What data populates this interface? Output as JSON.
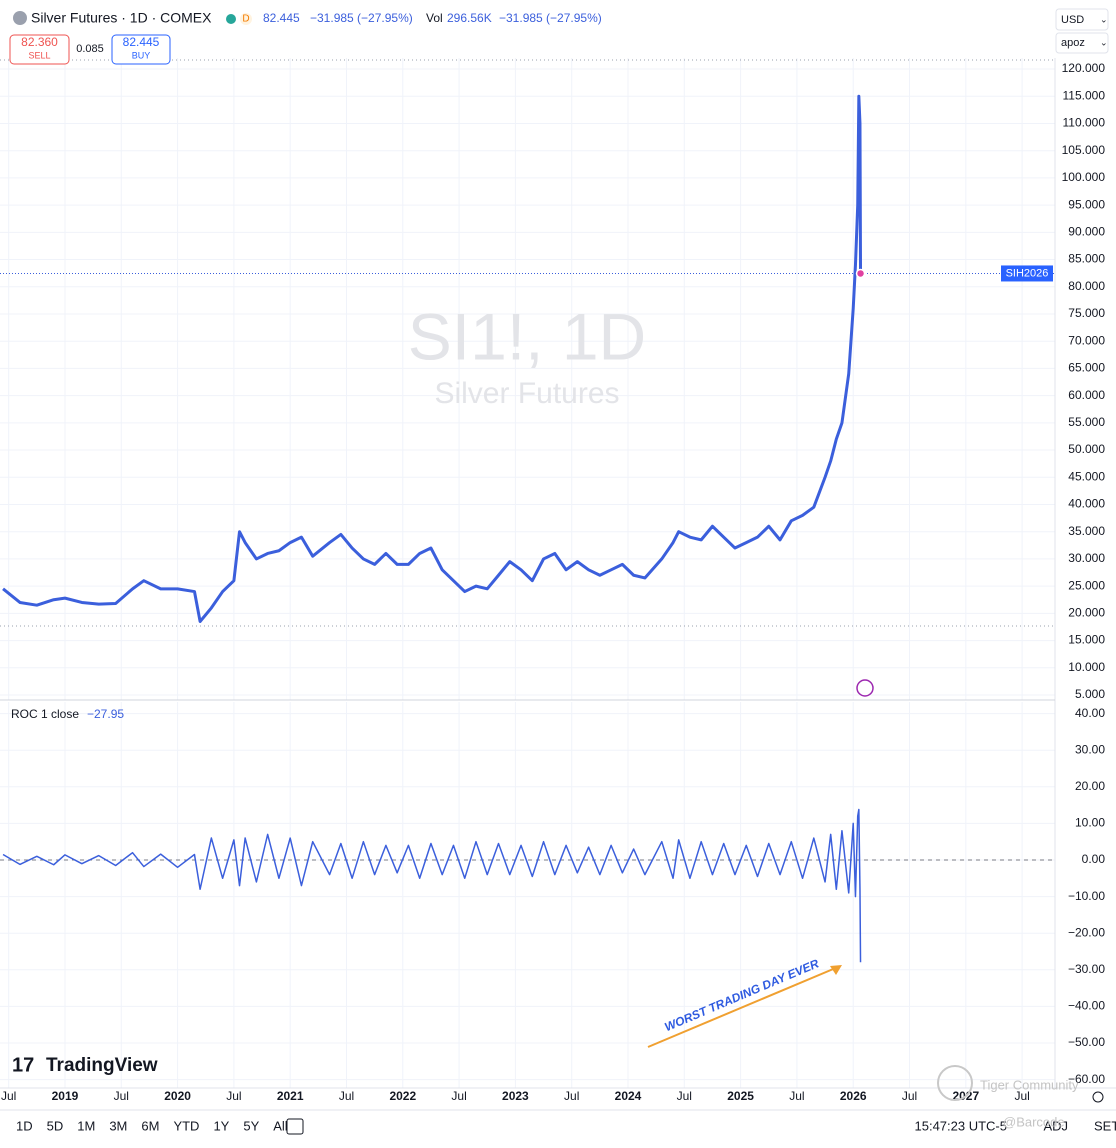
{
  "header": {
    "last": "82.445",
    "change": "−31.985 (−27.95%)",
    "vol_label": "Vol",
    "vol": "296.56K",
    "vol_change": "−31.985 (−27.95%)",
    "interval_badge": "D"
  },
  "trade_panel": {
    "sell_price": "82.360",
    "sell": "SELL",
    "spread": "0.085",
    "buy_price": "82.445",
    "buy": "BUY"
  },
  "currency": "USD",
  "scale_menu": "apoz",
  "toolbar": {
    "ranges": [
      "1D",
      "5D",
      "1M",
      "3M",
      "6M",
      "YTD",
      "1Y",
      "5Y",
      "All"
    ],
    "time": "15:47:23 UTC-5",
    "adj": "ADJ",
    "set": "SET"
  },
  "branding": "TradingView",
  "overlay": {
    "community": "Tiger Community",
    "handle": "@Barcode"
  },
  "chart_data": [
    {
      "type": "line",
      "title": "Silver Futures · 1D · COMEX",
      "watermark": [
        "SI1!, 1D",
        "Silver Futures"
      ],
      "x": [
        2018.45,
        2018.6,
        2018.75,
        2018.9,
        2019.0,
        2019.15,
        2019.3,
        2019.45,
        2019.6,
        2019.7,
        2019.85,
        2020.0,
        2020.15,
        2020.2,
        2020.3,
        2020.4,
        2020.5,
        2020.55,
        2020.6,
        2020.7,
        2020.8,
        2020.9,
        2021.0,
        2021.1,
        2021.2,
        2021.35,
        2021.45,
        2021.55,
        2021.65,
        2021.75,
        2021.85,
        2021.95,
        2022.05,
        2022.15,
        2022.25,
        2022.35,
        2022.45,
        2022.55,
        2022.65,
        2022.75,
        2022.85,
        2022.95,
        2023.05,
        2023.15,
        2023.25,
        2023.35,
        2023.45,
        2023.55,
        2023.65,
        2023.75,
        2023.85,
        2023.95,
        2024.05,
        2024.15,
        2024.3,
        2024.4,
        2024.45,
        2024.55,
        2024.65,
        2024.75,
        2024.85,
        2024.95,
        2025.05,
        2025.15,
        2025.25,
        2025.35,
        2025.45,
        2025.55,
        2025.65,
        2025.75,
        2025.8,
        2025.85,
        2025.9,
        2025.96,
        2026.0,
        2026.02,
        2026.04,
        2026.05,
        2026.06,
        2026.065
      ],
      "series": [
        {
          "name": "SIH2026",
          "color": "#3b5fdc",
          "values": [
            24.5,
            22,
            21.5,
            22.5,
            22.8,
            22,
            21.7,
            21.8,
            24.5,
            26,
            24.5,
            24.5,
            24,
            18.5,
            21,
            24,
            26,
            35,
            33,
            30,
            31,
            31.5,
            33,
            34,
            30.5,
            33,
            34.5,
            32,
            30,
            29,
            31,
            29,
            29,
            31,
            32,
            28,
            26,
            24,
            25,
            24.5,
            27,
            29.5,
            28,
            26,
            30,
            31,
            28,
            29.5,
            28,
            27,
            28,
            29,
            27,
            26.5,
            30,
            33,
            35,
            34,
            33.5,
            36,
            34,
            32,
            33,
            34,
            36,
            33.5,
            37,
            38,
            39.5,
            45,
            48,
            52,
            55,
            64,
            76,
            84,
            95,
            115,
            110,
            82.445
          ]
        }
      ],
      "xlim": [
        2018.423,
        2027.792
      ],
      "ylim": [
        4.08,
        122.03
      ],
      "grid": true,
      "yticks": [
        {
          "value": 5,
          "label": "5.000"
        },
        {
          "value": 10,
          "label": "10.000"
        },
        {
          "value": 15,
          "label": "15.000"
        },
        {
          "value": 20,
          "label": "20.000"
        },
        {
          "value": 25,
          "label": "25.000"
        },
        {
          "value": 30,
          "label": "30.000"
        },
        {
          "value": 35,
          "label": "35.000"
        },
        {
          "value": 40,
          "label": "40.000"
        },
        {
          "value": 45,
          "label": "45.000"
        },
        {
          "value": 50,
          "label": "50.000"
        },
        {
          "value": 55,
          "label": "55.000"
        },
        {
          "value": 60,
          "label": "60.000"
        },
        {
          "value": 65,
          "label": "65.000"
        },
        {
          "value": 70,
          "label": "70.000"
        },
        {
          "value": 75,
          "label": "75.000"
        },
        {
          "value": 80,
          "label": "80.000"
        },
        {
          "value": 85,
          "label": "85.000"
        },
        {
          "value": 90,
          "label": "90.000"
        },
        {
          "value": 95,
          "label": "95.000"
        },
        {
          "value": 100,
          "label": "100.000"
        },
        {
          "value": 105,
          "label": "105.000"
        },
        {
          "value": 110,
          "label": "110.000"
        },
        {
          "value": 115,
          "label": "115.000"
        },
        {
          "value": 120,
          "label": "120.000"
        }
      ]
    },
    {
      "type": "line",
      "legend_value": "−27.95",
      "annotation": "WORST TRADING DAY EVER",
      "x": [
        2018.45,
        2018.6,
        2018.75,
        2018.9,
        2019.0,
        2019.15,
        2019.3,
        2019.45,
        2019.6,
        2019.7,
        2019.85,
        2020.0,
        2020.15,
        2020.2,
        2020.3,
        2020.4,
        2020.5,
        2020.55,
        2020.6,
        2020.7,
        2020.8,
        2020.9,
        2021.0,
        2021.1,
        2021.2,
        2021.35,
        2021.45,
        2021.55,
        2021.65,
        2021.75,
        2021.85,
        2021.95,
        2022.05,
        2022.15,
        2022.25,
        2022.35,
        2022.45,
        2022.55,
        2022.65,
        2022.75,
        2022.85,
        2022.95,
        2023.05,
        2023.15,
        2023.25,
        2023.35,
        2023.45,
        2023.55,
        2023.65,
        2023.75,
        2023.85,
        2023.95,
        2024.05,
        2024.15,
        2024.3,
        2024.4,
        2024.45,
        2024.55,
        2024.65,
        2024.75,
        2024.85,
        2024.95,
        2025.05,
        2025.15,
        2025.25,
        2025.35,
        2025.45,
        2025.55,
        2025.65,
        2025.75,
        2025.8,
        2025.85,
        2025.9,
        2025.96,
        2026.0,
        2026.02,
        2026.04,
        2026.05,
        2026.06,
        2026.065
      ],
      "series": [
        {
          "name": "ROC 1 close",
          "color": "#3b5fdc",
          "values": [
            1.5,
            -1.2,
            1,
            -1.3,
            1.4,
            -1,
            1.2,
            -1.5,
            2,
            -1.8,
            1.6,
            -2,
            1.5,
            -8,
            6,
            -5,
            5.5,
            -7,
            6,
            -6,
            7,
            -5,
            6,
            -7,
            5,
            -4,
            4.5,
            -5,
            5,
            -4,
            4,
            -3.5,
            4,
            -5,
            4.5,
            -4,
            4,
            -5,
            5,
            -4,
            4.5,
            -4,
            4,
            -4.5,
            5,
            -4,
            4,
            -3.5,
            3.5,
            -4,
            4,
            -3.5,
            3,
            -4,
            5,
            -5,
            5.5,
            -5,
            5,
            -4,
            4.5,
            -4,
            4,
            -4.5,
            4.5,
            -4,
            5,
            -5,
            6,
            -6,
            7,
            -8,
            8,
            -9,
            10,
            -10,
            12,
            13.8,
            -8,
            -27.95
          ]
        }
      ],
      "xlim": [
        2018.423,
        2027.792
      ],
      "ylim": [
        -62.3,
        43.17
      ],
      "grid": true,
      "xticks": [
        {
          "value": 2018.5,
          "label": "Jul"
        },
        2019,
        {
          "value": 2019.5,
          "label": "Jul"
        },
        2020,
        {
          "value": 2020.5,
          "label": "Jul"
        },
        2021,
        {
          "value": 2021.5,
          "label": "Jul"
        },
        2022,
        {
          "value": 2022.5,
          "label": "Jul"
        },
        2023,
        {
          "value": 2023.5,
          "label": "Jul"
        },
        2024,
        {
          "value": 2024.5,
          "label": "Jul"
        },
        2025,
        {
          "value": 2025.5,
          "label": "Jul"
        },
        2026,
        {
          "value": 2026.5,
          "label": "Jul"
        },
        2027,
        {
          "value": 2027.5,
          "label": "Jul"
        }
      ],
      "yticks": [
        {
          "value": 40,
          "label": "40.00"
        },
        {
          "value": 30,
          "label": "30.00"
        },
        {
          "value": 20,
          "label": "20.00"
        },
        {
          "value": 10,
          "label": "10.00"
        },
        {
          "value": 0,
          "label": "0.00"
        },
        {
          "value": -10,
          "label": "−10.00"
        },
        {
          "value": -20,
          "label": "−20.00"
        },
        {
          "value": -30,
          "label": "−30.00"
        },
        {
          "value": -40,
          "label": "−40.00"
        },
        {
          "value": -50,
          "label": "−50.00"
        },
        {
          "value": -60,
          "label": "−60.00"
        }
      ]
    }
  ]
}
